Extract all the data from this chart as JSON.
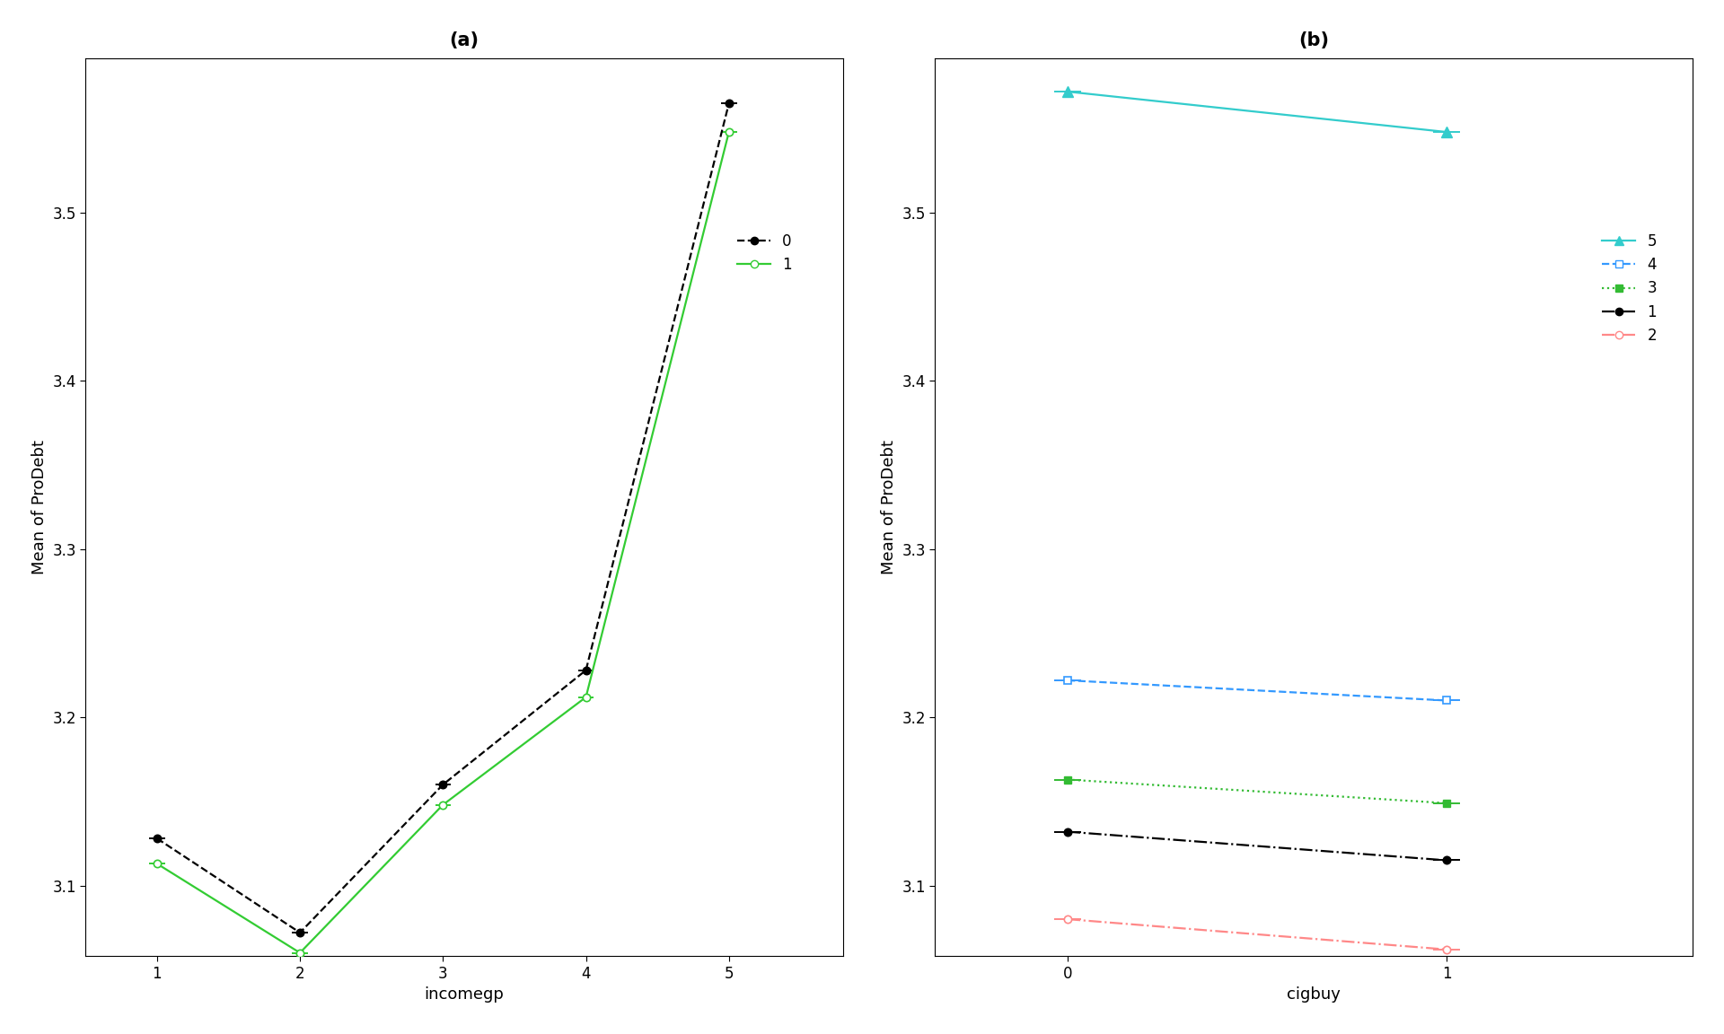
{
  "panel_a": {
    "title": "(a)",
    "xlabel": "incomegp",
    "ylabel": "Mean of ProDebt",
    "xlim": [
      0.5,
      5.8
    ],
    "ylim": [
      3.058,
      3.592
    ],
    "yticks": [
      3.1,
      3.2,
      3.3,
      3.4,
      3.5
    ],
    "xticks": [
      1,
      2,
      3,
      4,
      5
    ],
    "line0_x": [
      1,
      2,
      3,
      4,
      5
    ],
    "line0_y": [
      3.128,
      3.072,
      3.16,
      3.228,
      3.565
    ],
    "line1_x": [
      1,
      2,
      3,
      4,
      5
    ],
    "line1_y": [
      3.113,
      3.06,
      3.148,
      3.212,
      3.548
    ],
    "line0_color": "black",
    "line1_color": "#33cc33",
    "xerr": 0.055
  },
  "panel_b": {
    "title": "(b)",
    "xlabel": "cigbuy",
    "ylabel": "Mean of ProDebt",
    "xlim": [
      -0.35,
      1.65
    ],
    "ylim": [
      3.058,
      3.592
    ],
    "yticks": [
      3.1,
      3.2,
      3.3,
      3.4,
      3.5
    ],
    "xticks": [
      0,
      1
    ],
    "line5_x": [
      0,
      1
    ],
    "line5_y": [
      3.572,
      3.548
    ],
    "line4_x": [
      0,
      1
    ],
    "line4_y": [
      3.222,
      3.21
    ],
    "line3_x": [
      0,
      1
    ],
    "line3_y": [
      3.163,
      3.149
    ],
    "line1_x": [
      0,
      1
    ],
    "line1_y": [
      3.132,
      3.115
    ],
    "line2_x": [
      0,
      1
    ],
    "line2_y": [
      3.08,
      3.062
    ],
    "color5": "#33cccc",
    "color4": "#3399ff",
    "color3": "#33bb33",
    "color1": "black",
    "color2": "#ff8888",
    "xerr": 0.035
  },
  "font_size_title": 15,
  "font_size_label": 13,
  "font_size_tick": 12,
  "font_size_legend": 12
}
